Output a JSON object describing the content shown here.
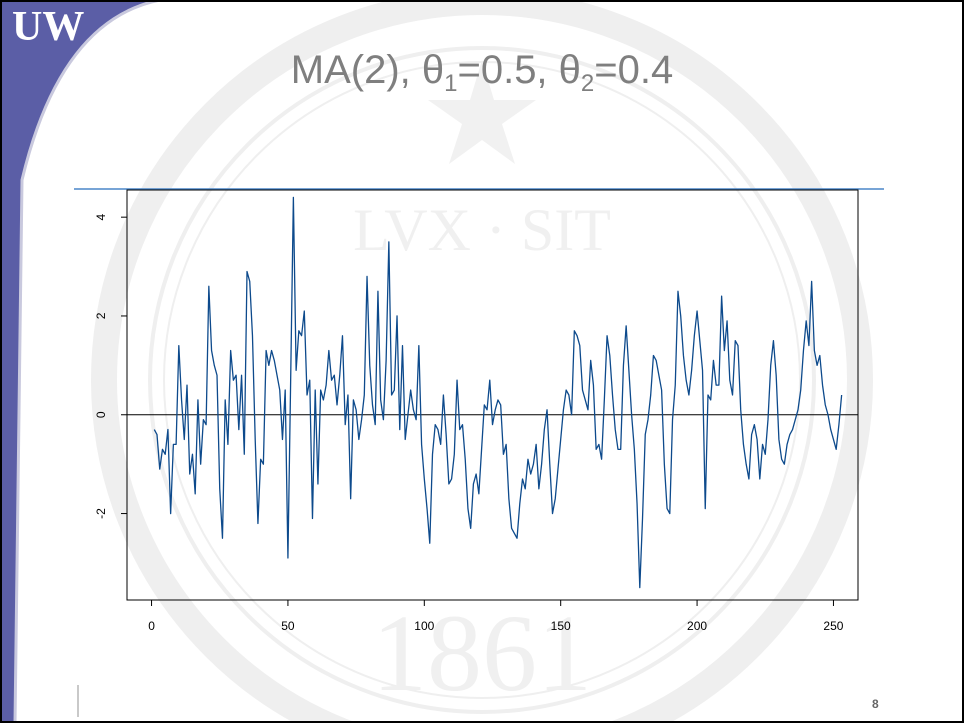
{
  "slide": {
    "logo_text": "UW",
    "seal_text": [
      "LVX",
      "SIT",
      "1861"
    ],
    "title_parts": {
      "pre": "MA(2), θ",
      "sub1": "1",
      "mid": "=0.5, θ",
      "sub2": "2",
      "post": "=0.4"
    },
    "page_number": "8",
    "colors": {
      "accent": "#5b5ea6",
      "rule": "#4a86c8",
      "series": "#0d4a8c",
      "title": "#7f7f7f"
    }
  },
  "chart_data": {
    "type": "line",
    "title": "MA(2), θ1=0.5, θ2=0.4",
    "xlabel": "",
    "ylabel": "",
    "xlim": [
      -9,
      259
    ],
    "ylim": [
      -3.75,
      4.55
    ],
    "xticks": [
      0,
      50,
      100,
      150,
      200,
      250
    ],
    "yticks": [
      -2,
      0,
      2,
      4
    ],
    "ytick_labels": [
      "-2",
      "0",
      "2",
      "4"
    ],
    "hline": 0,
    "series": [
      {
        "values": [
          -0.3,
          -0.4,
          -1.1,
          -0.7,
          -0.8,
          -0.3,
          -2.0,
          -0.6,
          -0.6,
          1.4,
          0.3,
          -0.5,
          0.6,
          -1.2,
          -0.8,
          -1.6,
          0.3,
          -1.0,
          -0.1,
          -0.2,
          2.6,
          1.3,
          1.0,
          0.8,
          -1.5,
          -2.5,
          0.3,
          -0.6,
          1.3,
          0.7,
          0.8,
          -0.3,
          0.8,
          -0.8,
          2.9,
          2.7,
          1.6,
          -0.5,
          -2.2,
          -0.9,
          -1.0,
          1.3,
          1.0,
          1.3,
          1.1,
          0.8,
          0.5,
          -0.5,
          0.5,
          -2.9,
          0.7,
          4.4,
          0.9,
          1.7,
          1.6,
          2.1,
          0.4,
          0.7,
          -2.1,
          0.5,
          -1.4,
          0.5,
          0.3,
          0.6,
          1.3,
          0.7,
          0.8,
          0.2,
          0.8,
          1.6,
          -0.2,
          0.4,
          -1.7,
          0.3,
          0.1,
          -0.5,
          -0.1,
          0.4,
          2.8,
          1.0,
          0.2,
          -0.2,
          2.5,
          0.3,
          -0.1,
          1.1,
          3.5,
          0.4,
          0.5,
          2.0,
          -0.3,
          1.4,
          -0.5,
          0.0,
          0.5,
          0.1,
          -0.1,
          1.4,
          -0.6,
          -1.3,
          -1.9,
          -2.6,
          -0.8,
          -0.2,
          -0.3,
          -0.6,
          0.4,
          -0.4,
          -1.4,
          -1.3,
          -0.8,
          0.7,
          -0.3,
          -0.2,
          -0.9,
          -1.9,
          -2.3,
          -1.4,
          -1.2,
          -1.6,
          -0.7,
          0.2,
          0.1,
          0.7,
          -0.2,
          0.1,
          0.3,
          0.2,
          -0.8,
          -0.6,
          -1.7,
          -2.3,
          -2.4,
          -2.5,
          -1.8,
          -1.3,
          -1.5,
          -0.9,
          -1.2,
          -1.0,
          -0.6,
          -1.5,
          -1.0,
          -0.3,
          0.1,
          -1.0,
          -2.0,
          -1.7,
          -1.1,
          -0.5,
          0.1,
          0.5,
          0.4,
          0.0,
          1.7,
          1.6,
          1.4,
          0.5,
          0.3,
          0.1,
          1.1,
          0.6,
          -0.7,
          -0.6,
          -0.9,
          0.3,
          1.6,
          1.2,
          0.4,
          -0.3,
          -0.7,
          -0.7,
          1.0,
          1.8,
          0.9,
          0.0,
          -0.7,
          -1.8,
          -3.5,
          -2.1,
          -0.4,
          -0.1,
          0.4,
          1.2,
          1.1,
          0.8,
          0.5,
          -1.0,
          -1.9,
          -2.0,
          -0.1,
          0.6,
          2.5,
          2.0,
          1.2,
          0.7,
          0.4,
          0.9,
          1.6,
          2.1,
          1.5,
          0.9,
          -1.9,
          0.4,
          0.3,
          1.1,
          0.6,
          0.6,
          2.4,
          1.3,
          1.9,
          0.7,
          0.4,
          1.5,
          1.4,
          0.1,
          -0.6,
          -1.0,
          -1.3,
          -0.4,
          -0.2,
          -0.5,
          -1.3,
          -0.6,
          -0.8,
          -0.1,
          1.0,
          1.5,
          0.8,
          -0.5,
          -0.9,
          -1.0,
          -0.6,
          -0.4,
          -0.3,
          -0.1,
          0.1,
          0.5,
          1.3,
          1.9,
          1.4,
          2.7,
          1.3,
          1.0,
          1.2,
          0.6,
          0.2,
          0.0,
          -0.3,
          -0.5,
          -0.7,
          -0.2,
          0.4
        ]
      }
    ]
  }
}
